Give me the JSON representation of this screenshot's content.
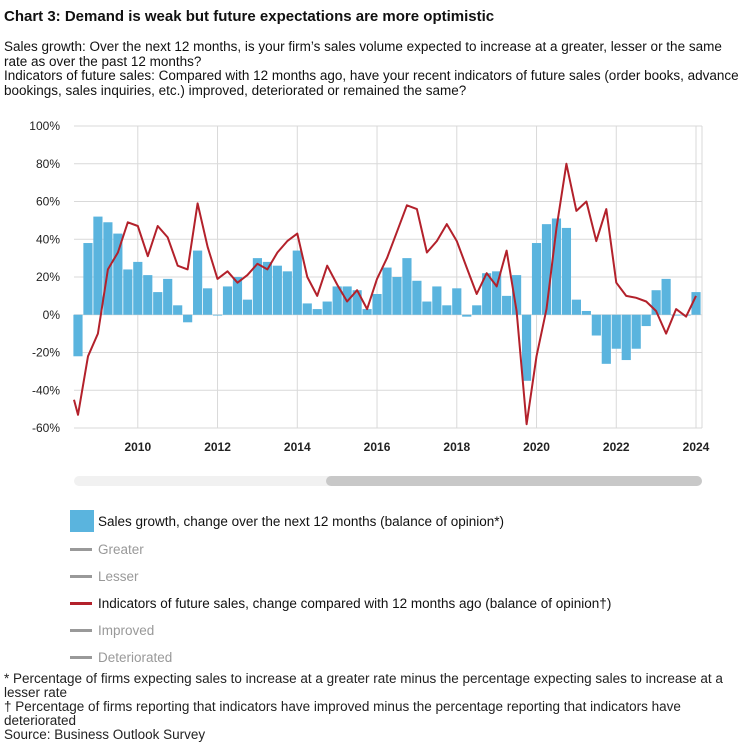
{
  "title": "Chart 3: Demand is weak but future expectations are more optimistic",
  "subtitle": {
    "line1": "Sales growth: Over the next 12 months, is your firm’s sales volume expected to increase at a greater, lesser or the same rate as over the past 12 months?",
    "line2": "Indicators of future sales: Compared with 12 months ago, have your recent indicators of future sales (order books, advance bookings, sales inquiries, etc.) improved, deteriorated or remained the same?"
  },
  "legend": {
    "sales_growth": "Sales growth, change over the next 12 months (balance of opinion*)",
    "greater": "Greater",
    "lesser": "Lesser",
    "indicators": "Indicators of future sales, change compared with 12 months ago (balance of opinion†)",
    "improved": "Improved",
    "deteriorated": "Deteriorated"
  },
  "notes": {
    "star": "* Percentage of firms expecting sales to increase at a greater rate minus the percentage expecting sales to increase at a lesser rate",
    "dagger": "† Percentage of firms reporting that indicators have improved minus the percentage reporting that indicators have deteriorated",
    "source": "Source: Business Outlook Survey"
  },
  "colors": {
    "bars": "#5ab4de",
    "line": "#b3212b",
    "grid": "#d9d9d9",
    "inactive": "#999999"
  },
  "chart_data": {
    "type": "bar",
    "ylim": [
      -60,
      100
    ],
    "yticks": [
      -60,
      -40,
      -20,
      0,
      20,
      40,
      60,
      80,
      100
    ],
    "ytick_labels": [
      "-60%",
      "-40%",
      "-20%",
      "0%",
      "20%",
      "40%",
      "60%",
      "80%",
      "100%"
    ],
    "xlim": [
      2008.4,
      2024.15
    ],
    "xticks": [
      2010,
      2012,
      2014,
      2016,
      2018,
      2020,
      2022,
      2024
    ],
    "xtick_labels": [
      "2010",
      "2012",
      "2014",
      "2016",
      "2018",
      "2020",
      "2022",
      "2024"
    ],
    "grid": true,
    "series": [
      {
        "name": "Sales growth",
        "kind": "bar",
        "x": [
          2008.5,
          2008.75,
          2009.0,
          2009.25,
          2009.5,
          2009.75,
          2010.0,
          2010.25,
          2010.5,
          2010.75,
          2011.0,
          2011.25,
          2011.5,
          2011.75,
          2012.0,
          2012.25,
          2012.5,
          2012.75,
          2013.0,
          2013.25,
          2013.5,
          2013.75,
          2014.0,
          2014.25,
          2014.5,
          2014.75,
          2015.0,
          2015.25,
          2015.5,
          2015.75,
          2016.0,
          2016.25,
          2016.5,
          2016.75,
          2017.0,
          2017.25,
          2017.5,
          2017.75,
          2018.0,
          2018.25,
          2018.5,
          2018.75,
          2019.0,
          2019.25,
          2019.5,
          2019.75,
          2020.0,
          2020.25,
          2020.5,
          2020.75,
          2021.0,
          2021.25,
          2021.5,
          2021.75,
          2022.0,
          2022.25,
          2022.5,
          2022.75,
          2023.0,
          2023.25,
          2023.5,
          2023.75,
          2024.0
        ],
        "values": [
          -22,
          38,
          52,
          49,
          43,
          24,
          28,
          21,
          12,
          19,
          5,
          -4,
          34,
          14,
          0,
          15,
          20,
          8,
          30,
          28,
          26,
          23,
          34,
          6,
          3,
          7,
          15,
          15,
          13,
          3,
          11,
          25,
          20,
          30,
          18,
          7,
          15,
          5,
          14,
          -1,
          5,
          22,
          23,
          10,
          21,
          -35,
          38,
          48,
          51,
          46,
          8,
          2,
          -11,
          -26,
          -18,
          -24,
          -18,
          -6,
          13,
          19,
          0,
          0,
          12
        ]
      },
      {
        "name": "Indicators of future sales",
        "kind": "line",
        "x": [
          2008.4,
          2008.5,
          2008.75,
          2009.0,
          2009.25,
          2009.5,
          2009.75,
          2010.0,
          2010.25,
          2010.5,
          2010.75,
          2011.0,
          2011.25,
          2011.5,
          2011.75,
          2012.0,
          2012.25,
          2012.5,
          2012.75,
          2013.0,
          2013.25,
          2013.5,
          2013.75,
          2014.0,
          2014.25,
          2014.5,
          2014.75,
          2015.0,
          2015.25,
          2015.5,
          2015.75,
          2016.0,
          2016.25,
          2016.5,
          2016.75,
          2017.0,
          2017.25,
          2017.5,
          2017.75,
          2018.0,
          2018.25,
          2018.5,
          2018.75,
          2019.0,
          2019.25,
          2019.5,
          2019.75,
          2020.0,
          2020.25,
          2020.5,
          2020.75,
          2021.0,
          2021.25,
          2021.5,
          2021.75,
          2022.0,
          2022.25,
          2022.5,
          2022.75,
          2023.0,
          2023.25,
          2023.5,
          2023.75,
          2024.0
        ],
        "values": [
          -45,
          -53,
          -22,
          -10,
          24,
          33,
          49,
          47,
          31,
          47,
          41,
          26,
          24,
          59,
          36,
          19,
          23,
          17,
          21,
          27,
          24,
          33,
          39,
          43,
          20,
          10,
          26,
          16,
          7,
          13,
          3,
          19,
          30,
          44,
          58,
          56,
          33,
          39,
          48,
          39,
          25,
          11,
          22,
          15,
          34,
          2,
          -58,
          -22,
          3,
          46,
          80,
          55,
          60,
          39,
          56,
          17,
          10,
          9,
          7,
          2,
          -10,
          3,
          -1,
          10
        ]
      }
    ]
  }
}
